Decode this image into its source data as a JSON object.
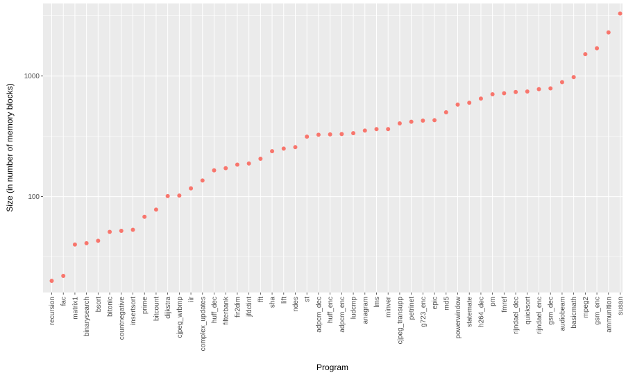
{
  "chart_data": {
    "type": "scatter",
    "title": "",
    "xlabel": "Program",
    "ylabel": "Size (in number of memory blocks)",
    "yscale": "log10",
    "ylim": [
      16,
      4000
    ],
    "y_ticks": [
      100,
      1000
    ],
    "y_tick_labels": [
      "100",
      "1000"
    ],
    "grid": true,
    "legend": "none",
    "point_color": "#F8766D",
    "panel_color": "#EBEBEB",
    "gridline_color": "#FFFFFF",
    "categories": [
      "recursion",
      "fac",
      "matrix1",
      "binarysearch",
      "bsort",
      "bitonic",
      "countnegative",
      "insertsort",
      "prime",
      "bitcount",
      "dijkstra",
      "cjpeg_wrbmp",
      "iir",
      "complex_updates",
      "huff_dec",
      "filterbank",
      "fir2dim",
      "jfdctint",
      "fft",
      "sha",
      "lift",
      "ndes",
      "st",
      "adpcm_dec",
      "huff_enc",
      "adpcm_enc",
      "ludcmp",
      "anagram",
      "lms",
      "minver",
      "cjpeg_transupp",
      "petrinet",
      "g723_enc",
      "epic",
      "md5",
      "powerwindow",
      "statemate",
      "h264_dec",
      "pm",
      "fmref",
      "rijndael_dec",
      "quicksort",
      "rijndael_enc",
      "gsm_dec",
      "audiobeam",
      "basicmath",
      "mpeg2",
      "gsm_enc",
      "ammunition",
      "susan"
    ],
    "values": [
      20,
      22,
      40,
      41,
      43,
      51,
      52,
      53,
      68,
      78,
      101,
      102,
      117,
      136,
      165,
      172,
      184,
      188,
      206,
      238,
      250,
      257,
      314,
      326,
      328,
      330,
      336,
      353,
      363,
      363,
      405,
      418,
      427,
      430,
      500,
      580,
      600,
      650,
      706,
      720,
      737,
      744,
      778,
      790,
      890,
      980,
      1520,
      1700,
      2300,
      3300
    ]
  }
}
